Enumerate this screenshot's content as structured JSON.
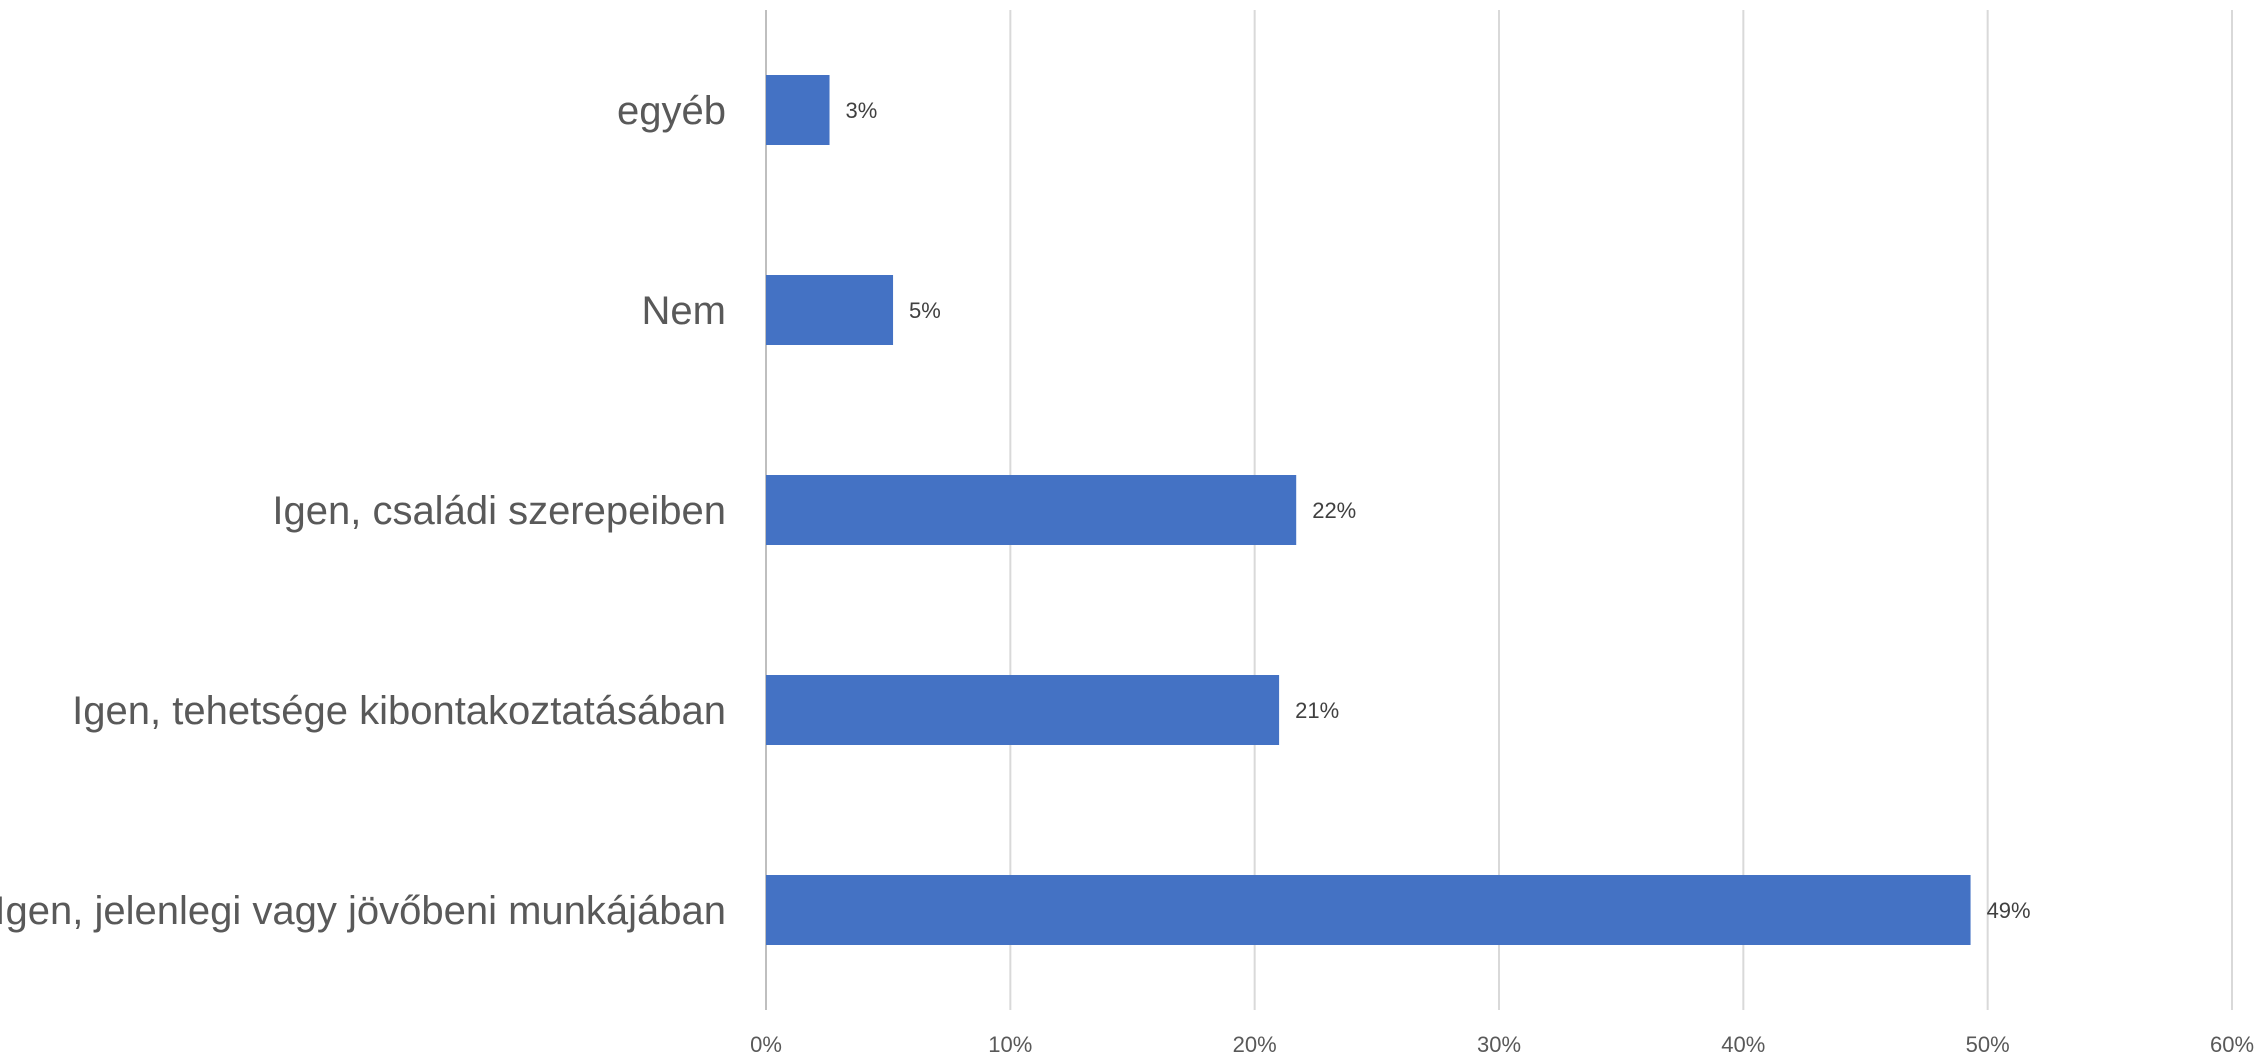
{
  "chart_data": {
    "type": "bar",
    "orientation": "horizontal",
    "categories": [
      "egyéb",
      "Nem",
      "Igen, családi szerepeiben",
      "Igen, tehetsége kibontakoztatásában",
      "Igen, jelenlegi vagy jövőbeni munkájában"
    ],
    "values": [
      2.6,
      5.2,
      21.7,
      21.0,
      49.3
    ],
    "data_labels": [
      "3%",
      "5%",
      "22%",
      "21%",
      "49%"
    ],
    "xlim": [
      0,
      60
    ],
    "x_ticks": [
      0,
      10,
      20,
      30,
      40,
      50,
      60
    ],
    "x_tick_labels": [
      "0%",
      "10%",
      "20%",
      "30%",
      "40%",
      "50%",
      "60%"
    ],
    "grid": true,
    "legend": "none",
    "bar_color": "#4472C4"
  }
}
